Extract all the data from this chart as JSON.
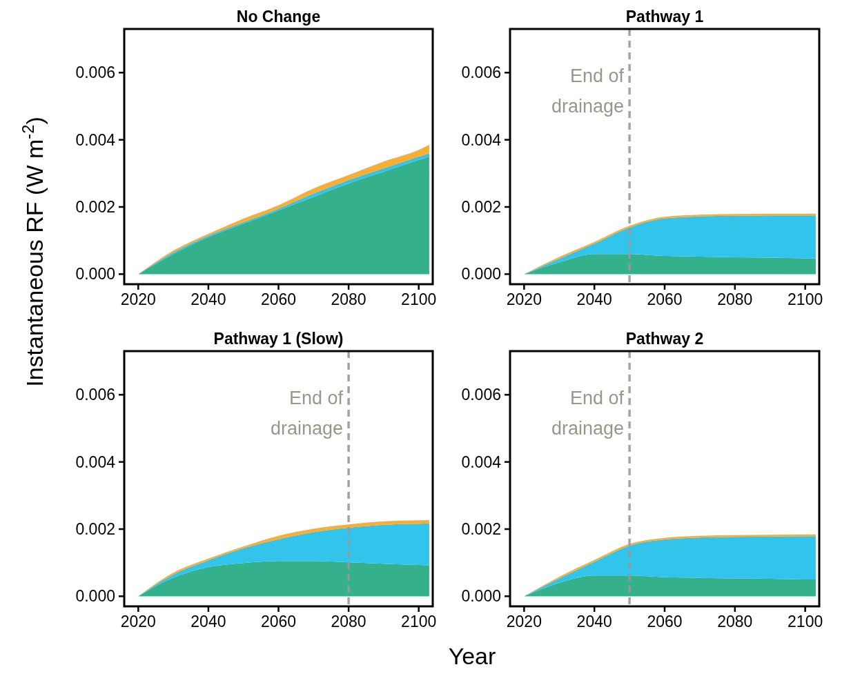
{
  "chart_data": [
    {
      "type": "area",
      "title": "No Change",
      "ylabel": "Instantaneous RF (W m$^{-2}$)",
      "stacked": true,
      "x": [
        2020,
        2030,
        2040,
        2050,
        2060,
        2070,
        2080,
        2090,
        2100,
        2103
      ],
      "xlim": [
        2016,
        2104
      ],
      "xticks": [
        2020,
        2040,
        2060,
        2080,
        2100
      ],
      "ylim": [
        -0.0003,
        0.0073
      ],
      "yticks": [
        {
          "value": 0,
          "label": "0.000"
        },
        {
          "value": 0.002,
          "label": "0.002"
        },
        {
          "value": 0.004,
          "label": "0.004"
        },
        {
          "value": 0.006,
          "label": "0.006"
        }
      ],
      "grid": false,
      "series": [
        {
          "color": "#34b18a",
          "values": [
            0,
            0.0006,
            0.0011,
            0.0015,
            0.0019,
            0.0023,
            0.0027,
            0.00305,
            0.0034,
            0.0035
          ]
        },
        {
          "color": "#33c4ec",
          "values": [
            0,
            5e-05,
            5e-05,
            5e-05,
            5e-05,
            0.0001,
            0.0001,
            0.0001,
            0.0001,
            0.0001
          ]
        },
        {
          "color": "#f6ae35",
          "values": [
            0,
            5e-05,
            5e-05,
            0.0001,
            0.0001,
            0.00015,
            0.00015,
            0.0002,
            0.0002,
            0.00025
          ]
        }
      ]
    },
    {
      "type": "area",
      "title": "Pathway 1",
      "stacked": true,
      "x": [
        2020,
        2030,
        2040,
        2050,
        2060,
        2070,
        2080,
        2090,
        2100,
        2103
      ],
      "xlim": [
        2016,
        2104
      ],
      "xticks": [
        2020,
        2040,
        2060,
        2080,
        2100
      ],
      "ylim": [
        -0.0003,
        0.0073
      ],
      "yticks": [
        {
          "value": 0,
          "label": "0.000"
        },
        {
          "value": 0.002,
          "label": "0.002"
        },
        {
          "value": 0.004,
          "label": "0.004"
        },
        {
          "value": 0.006,
          "label": "0.006"
        }
      ],
      "grid": false,
      "ref_lines": [
        {
          "axis": "x",
          "value": 2050,
          "label": "End of drainage",
          "color": "#999999",
          "line_style": "dashed"
        }
      ],
      "series": [
        {
          "color": "#34b18a",
          "values": [
            0,
            0.00035,
            0.0006,
            0.0006,
            0.00054,
            0.00052,
            0.0005,
            0.00049,
            0.00047,
            0.00047
          ]
        },
        {
          "color": "#33c4ec",
          "values": [
            0,
            0.00011,
            0.00031,
            0.00079,
            0.00112,
            0.0012,
            0.00124,
            0.00126,
            0.00128,
            0.00128
          ]
        },
        {
          "color": "#f6ae35",
          "values": [
            0,
            5e-05,
            5e-05,
            5e-05,
            5e-05,
            5e-05,
            5e-05,
            5e-05,
            5e-05,
            5e-05
          ]
        }
      ]
    },
    {
      "type": "area",
      "title": "Pathway 1 (Slow)",
      "xlabel": "Year",
      "stacked": true,
      "x": [
        2020,
        2030,
        2040,
        2050,
        2060,
        2070,
        2080,
        2090,
        2100,
        2103
      ],
      "xlim": [
        2016,
        2104
      ],
      "xticks": [
        2020,
        2040,
        2060,
        2080,
        2100
      ],
      "ylim": [
        -0.0003,
        0.0073
      ],
      "yticks": [
        {
          "value": 0,
          "label": "0.000"
        },
        {
          "value": 0.002,
          "label": "0.002"
        },
        {
          "value": 0.004,
          "label": "0.004"
        },
        {
          "value": 0.006,
          "label": "0.006"
        }
      ],
      "grid": false,
      "ref_lines": [
        {
          "axis": "x",
          "value": 2080,
          "label": "End of drainage",
          "color": "#999999",
          "line_style": "dashed"
        }
      ],
      "series": [
        {
          "color": "#34b18a",
          "values": [
            0,
            0.00055,
            0.00087,
            0.00099,
            0.00105,
            0.00105,
            0.00101,
            0.00097,
            0.00093,
            0.00092
          ]
        },
        {
          "color": "#33c4ec",
          "values": [
            0,
            0.0001,
            0.0002,
            0.00044,
            0.00065,
            0.00086,
            0.00103,
            0.00116,
            0.00123,
            0.00125
          ]
        },
        {
          "color": "#f6ae35",
          "values": [
            0,
            5e-05,
            5e-05,
            5e-05,
            0.0001,
            0.0001,
            0.0001,
            0.0001,
            0.0001,
            0.0001
          ]
        }
      ]
    },
    {
      "type": "area",
      "title": "Pathway 2",
      "stacked": true,
      "x": [
        2020,
        2030,
        2040,
        2050,
        2060,
        2070,
        2080,
        2090,
        2100,
        2103
      ],
      "xlim": [
        2016,
        2104
      ],
      "xticks": [
        2020,
        2040,
        2060,
        2080,
        2100
      ],
      "ylim": [
        -0.0003,
        0.0073
      ],
      "yticks": [
        {
          "value": 0,
          "label": "0.000"
        },
        {
          "value": 0.002,
          "label": "0.002"
        },
        {
          "value": 0.004,
          "label": "0.004"
        },
        {
          "value": 0.006,
          "label": "0.006"
        }
      ],
      "grid": false,
      "ref_lines": [
        {
          "axis": "x",
          "value": 2050,
          "label": "End of drainage",
          "color": "#999999",
          "line_style": "dashed"
        }
      ],
      "series": [
        {
          "color": "#34b18a",
          "values": [
            0,
            0.0004,
            0.00062,
            0.00062,
            0.00057,
            0.00055,
            0.00053,
            0.00052,
            0.0005,
            0.0005
          ]
        },
        {
          "color": "#33c4ec",
          "values": [
            0,
            0.00013,
            0.00041,
            0.00089,
            0.00112,
            0.0012,
            0.00124,
            0.00126,
            0.00129,
            0.00129
          ]
        },
        {
          "color": "#f6ae35",
          "values": [
            0,
            5e-05,
            5e-05,
            5e-05,
            5e-05,
            5e-05,
            5e-05,
            5e-05,
            5e-05,
            5e-05
          ]
        }
      ]
    }
  ]
}
